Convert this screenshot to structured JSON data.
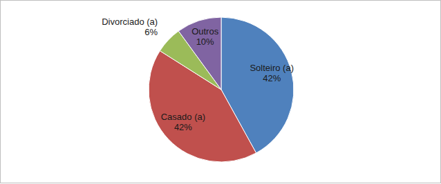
{
  "chart_data": {
    "type": "pie",
    "categories": [
      "Solteiro (a)",
      "Casado (a)",
      "Divorciado (a)",
      "Outros"
    ],
    "values": [
      42,
      42,
      6,
      10
    ],
    "value_labels": [
      "42%",
      "42%",
      "6%",
      "10%"
    ],
    "colors": [
      "#4f81bd",
      "#c0504d",
      "#9bbb59",
      "#8064a2"
    ],
    "data_labels": true
  }
}
